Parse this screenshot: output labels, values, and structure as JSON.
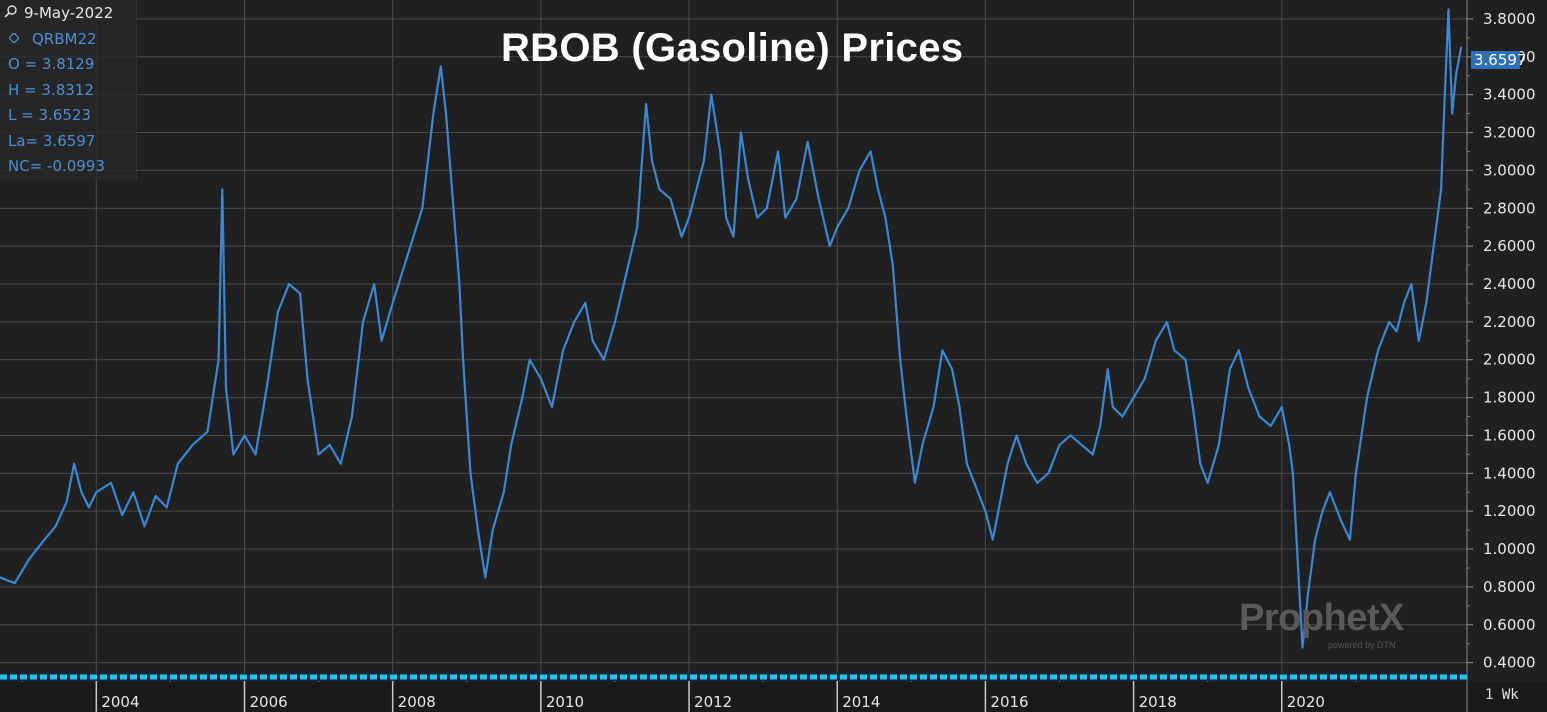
{
  "info_panel": {
    "date": "9-May-2022",
    "symbol": "QRBM22",
    "open": "O = 3.8129",
    "high": "H = 3.8312",
    "low": "L = 3.6523",
    "last": "La= 3.6597",
    "net_change": "NC= -0.0993"
  },
  "last_price_badge": "3.6597",
  "period": "1 Wk",
  "watermark": {
    "brand": "ProphetX",
    "sub": "powered by DTN"
  },
  "colors": {
    "background": "#202020",
    "line": "#3a87d4",
    "grid": "#4a4a4a",
    "badge": "#2f6fb5"
  },
  "chart_data": {
    "type": "line",
    "title": "RBOB (Gasoline) Prices",
    "xlabel": "",
    "ylabel": "",
    "xlim": [
      2002.7,
      2022.5
    ],
    "ylim": [
      0.34,
      3.9
    ],
    "grid": true,
    "y_axis_position": "right",
    "x_ticks": [
      {
        "value": 2004,
        "label": "2004"
      },
      {
        "value": 2006,
        "label": "2006"
      },
      {
        "value": 2008,
        "label": "2008"
      },
      {
        "value": 2010,
        "label": "2010"
      },
      {
        "value": 2012,
        "label": "2012"
      },
      {
        "value": 2014,
        "label": "2014"
      },
      {
        "value": 2016,
        "label": "2016"
      },
      {
        "value": 2018,
        "label": "2018"
      },
      {
        "value": 2020,
        "label": "2020"
      }
    ],
    "y_ticks": [
      "0.4000",
      "0.6000",
      "0.8000",
      "1.0000",
      "1.2000",
      "1.4000",
      "1.6000",
      "1.8000",
      "2.0000",
      "2.2000",
      "2.4000",
      "2.6000",
      "2.8000",
      "3.0000",
      "3.2000",
      "3.4000",
      "3.6000",
      "3.8000"
    ],
    "series": [
      {
        "values": [
          [
            2002.7,
            0.85
          ],
          [
            2002.9,
            0.82
          ],
          [
            2003.1,
            0.95
          ],
          [
            2003.3,
            1.05
          ],
          [
            2003.45,
            1.12
          ],
          [
            2003.6,
            1.25
          ],
          [
            2003.7,
            1.45
          ],
          [
            2003.8,
            1.3
          ],
          [
            2003.9,
            1.22
          ],
          [
            2004.0,
            1.3
          ],
          [
            2004.2,
            1.35
          ],
          [
            2004.35,
            1.18
          ],
          [
            2004.5,
            1.3
          ],
          [
            2004.65,
            1.12
          ],
          [
            2004.8,
            1.28
          ],
          [
            2004.95,
            1.22
          ],
          [
            2005.1,
            1.45
          ],
          [
            2005.3,
            1.55
          ],
          [
            2005.5,
            1.62
          ],
          [
            2005.65,
            2.0
          ],
          [
            2005.7,
            2.9
          ],
          [
            2005.75,
            1.85
          ],
          [
            2005.85,
            1.5
          ],
          [
            2006.0,
            1.6
          ],
          [
            2006.15,
            1.5
          ],
          [
            2006.3,
            1.85
          ],
          [
            2006.45,
            2.25
          ],
          [
            2006.6,
            2.4
          ],
          [
            2006.75,
            2.35
          ],
          [
            2006.85,
            1.9
          ],
          [
            2007.0,
            1.5
          ],
          [
            2007.15,
            1.55
          ],
          [
            2007.3,
            1.45
          ],
          [
            2007.45,
            1.7
          ],
          [
            2007.6,
            2.2
          ],
          [
            2007.75,
            2.4
          ],
          [
            2007.85,
            2.1
          ],
          [
            2008.0,
            2.3
          ],
          [
            2008.2,
            2.55
          ],
          [
            2008.4,
            2.8
          ],
          [
            2008.55,
            3.3
          ],
          [
            2008.65,
            3.55
          ],
          [
            2008.72,
            3.3
          ],
          [
            2008.8,
            2.9
          ],
          [
            2008.9,
            2.4
          ],
          [
            2008.95,
            2.0
          ],
          [
            2009.05,
            1.4
          ],
          [
            2009.15,
            1.1
          ],
          [
            2009.25,
            0.85
          ],
          [
            2009.35,
            1.1
          ],
          [
            2009.5,
            1.3
          ],
          [
            2009.6,
            1.55
          ],
          [
            2009.75,
            1.8
          ],
          [
            2009.85,
            2.0
          ],
          [
            2010.0,
            1.9
          ],
          [
            2010.15,
            1.75
          ],
          [
            2010.3,
            2.05
          ],
          [
            2010.45,
            2.2
          ],
          [
            2010.6,
            2.3
          ],
          [
            2010.7,
            2.1
          ],
          [
            2010.85,
            2.0
          ],
          [
            2011.0,
            2.2
          ],
          [
            2011.15,
            2.45
          ],
          [
            2011.3,
            2.7
          ],
          [
            2011.42,
            3.35
          ],
          [
            2011.5,
            3.05
          ],
          [
            2011.6,
            2.9
          ],
          [
            2011.75,
            2.85
          ],
          [
            2011.9,
            2.65
          ],
          [
            2012.0,
            2.75
          ],
          [
            2012.2,
            3.05
          ],
          [
            2012.3,
            3.4
          ],
          [
            2012.42,
            3.1
          ],
          [
            2012.5,
            2.75
          ],
          [
            2012.6,
            2.65
          ],
          [
            2012.7,
            3.2
          ],
          [
            2012.8,
            2.95
          ],
          [
            2012.92,
            2.75
          ],
          [
            2013.05,
            2.8
          ],
          [
            2013.2,
            3.1
          ],
          [
            2013.3,
            2.75
          ],
          [
            2013.45,
            2.85
          ],
          [
            2013.6,
            3.15
          ],
          [
            2013.75,
            2.85
          ],
          [
            2013.9,
            2.6
          ],
          [
            2014.0,
            2.7
          ],
          [
            2014.15,
            2.8
          ],
          [
            2014.3,
            3.0
          ],
          [
            2014.45,
            3.1
          ],
          [
            2014.55,
            2.9
          ],
          [
            2014.65,
            2.75
          ],
          [
            2014.75,
            2.5
          ],
          [
            2014.85,
            2.0
          ],
          [
            2014.95,
            1.65
          ],
          [
            2015.05,
            1.35
          ],
          [
            2015.15,
            1.55
          ],
          [
            2015.3,
            1.75
          ],
          [
            2015.42,
            2.05
          ],
          [
            2015.55,
            1.95
          ],
          [
            2015.65,
            1.75
          ],
          [
            2015.75,
            1.45
          ],
          [
            2015.85,
            1.35
          ],
          [
            2016.0,
            1.2
          ],
          [
            2016.1,
            1.05
          ],
          [
            2016.2,
            1.25
          ],
          [
            2016.3,
            1.45
          ],
          [
            2016.42,
            1.6
          ],
          [
            2016.55,
            1.45
          ],
          [
            2016.7,
            1.35
          ],
          [
            2016.85,
            1.4
          ],
          [
            2017.0,
            1.55
          ],
          [
            2017.15,
            1.6
          ],
          [
            2017.3,
            1.55
          ],
          [
            2017.45,
            1.5
          ],
          [
            2017.55,
            1.65
          ],
          [
            2017.65,
            1.95
          ],
          [
            2017.72,
            1.75
          ],
          [
            2017.85,
            1.7
          ],
          [
            2018.0,
            1.8
          ],
          [
            2018.15,
            1.9
          ],
          [
            2018.3,
            2.1
          ],
          [
            2018.45,
            2.2
          ],
          [
            2018.55,
            2.05
          ],
          [
            2018.7,
            2.0
          ],
          [
            2018.8,
            1.75
          ],
          [
            2018.9,
            1.45
          ],
          [
            2019.0,
            1.35
          ],
          [
            2019.15,
            1.55
          ],
          [
            2019.3,
            1.95
          ],
          [
            2019.42,
            2.05
          ],
          [
            2019.55,
            1.85
          ],
          [
            2019.7,
            1.7
          ],
          [
            2019.85,
            1.65
          ],
          [
            2020.0,
            1.75
          ],
          [
            2020.1,
            1.55
          ],
          [
            2020.15,
            1.4
          ],
          [
            2020.22,
            0.9
          ],
          [
            2020.28,
            0.48
          ],
          [
            2020.35,
            0.75
          ],
          [
            2020.45,
            1.05
          ],
          [
            2020.55,
            1.2
          ],
          [
            2020.65,
            1.3
          ],
          [
            2020.8,
            1.15
          ],
          [
            2020.92,
            1.05
          ],
          [
            2021.0,
            1.4
          ],
          [
            2021.15,
            1.8
          ],
          [
            2021.3,
            2.05
          ],
          [
            2021.45,
            2.2
          ],
          [
            2021.55,
            2.15
          ],
          [
            2021.65,
            2.3
          ],
          [
            2021.75,
            2.4
          ],
          [
            2021.85,
            2.1
          ],
          [
            2021.95,
            2.3
          ],
          [
            2022.05,
            2.6
          ],
          [
            2022.15,
            2.9
          ],
          [
            2022.2,
            3.4
          ],
          [
            2022.25,
            3.85
          ],
          [
            2022.3,
            3.3
          ],
          [
            2022.35,
            3.5
          ],
          [
            2022.42,
            3.65
          ]
        ]
      }
    ]
  }
}
